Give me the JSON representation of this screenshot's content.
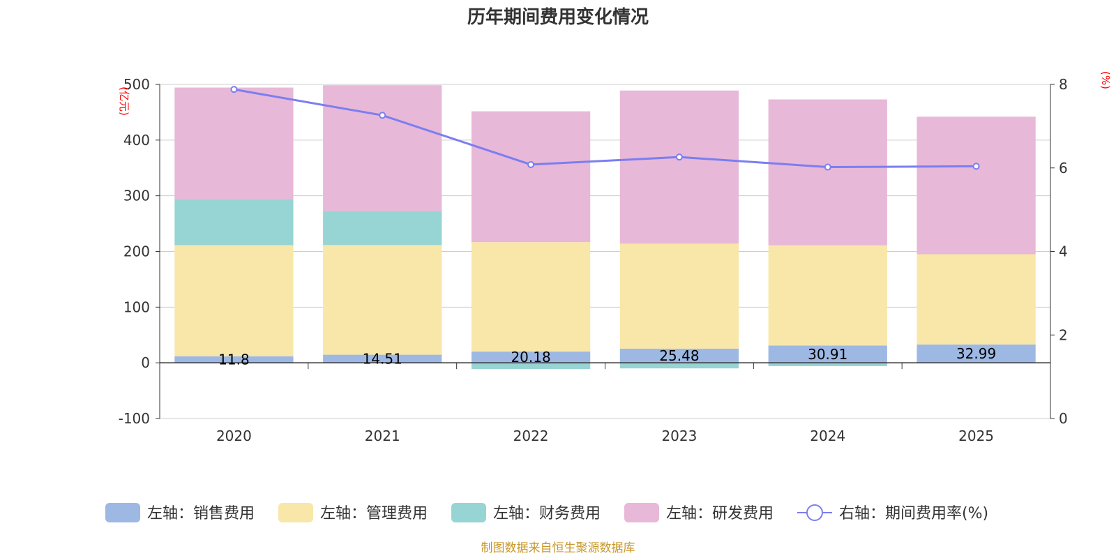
{
  "chart_data": {
    "type": "bar",
    "title": "历年期间费用变化情况",
    "categories": [
      "2020",
      "2021",
      "2022",
      "2023",
      "2024",
      "2025"
    ],
    "left_axis": {
      "unit": "(亿元)",
      "ylim": [
        -100,
        500
      ],
      "ticks": [
        -100,
        0,
        100,
        200,
        300,
        400,
        500
      ]
    },
    "right_axis": {
      "unit": "(%)",
      "ylim": [
        0,
        8
      ],
      "ticks": [
        0,
        2,
        4,
        6,
        8
      ]
    },
    "series": [
      {
        "name": "左轴：销售费用",
        "type": "bar",
        "axis": "left",
        "color": "#9db8e3",
        "values": [
          11.8,
          14.51,
          20.18,
          25.48,
          30.91,
          32.99
        ],
        "labels": [
          "11.8",
          "14.51",
          "20.18",
          "25.48",
          "30.91",
          "32.99"
        ]
      },
      {
        "name": "左轴：管理费用",
        "type": "bar",
        "axis": "left",
        "color": "#f8e7a9",
        "values": [
          199.5,
          197.0,
          196.5,
          188.5,
          180.1,
          162.0
        ]
      },
      {
        "name": "左轴：财务费用",
        "type": "bar",
        "axis": "left",
        "color": "#97d4d4",
        "values": [
          83,
          61,
          -11,
          -10,
          -6,
          0
        ]
      },
      {
        "name": "左轴：研发费用",
        "type": "bar",
        "axis": "left",
        "color": "#e8b8d8",
        "values": [
          200,
          226,
          235,
          275,
          262,
          247
        ]
      },
      {
        "name": "右轴：期间费用率(%)",
        "type": "line",
        "axis": "right",
        "color": "#7b7ef0",
        "values": [
          7.88,
          7.26,
          6.08,
          6.26,
          6.02,
          6.04
        ]
      }
    ]
  },
  "source": "制图数据来自恒生聚源数据库"
}
